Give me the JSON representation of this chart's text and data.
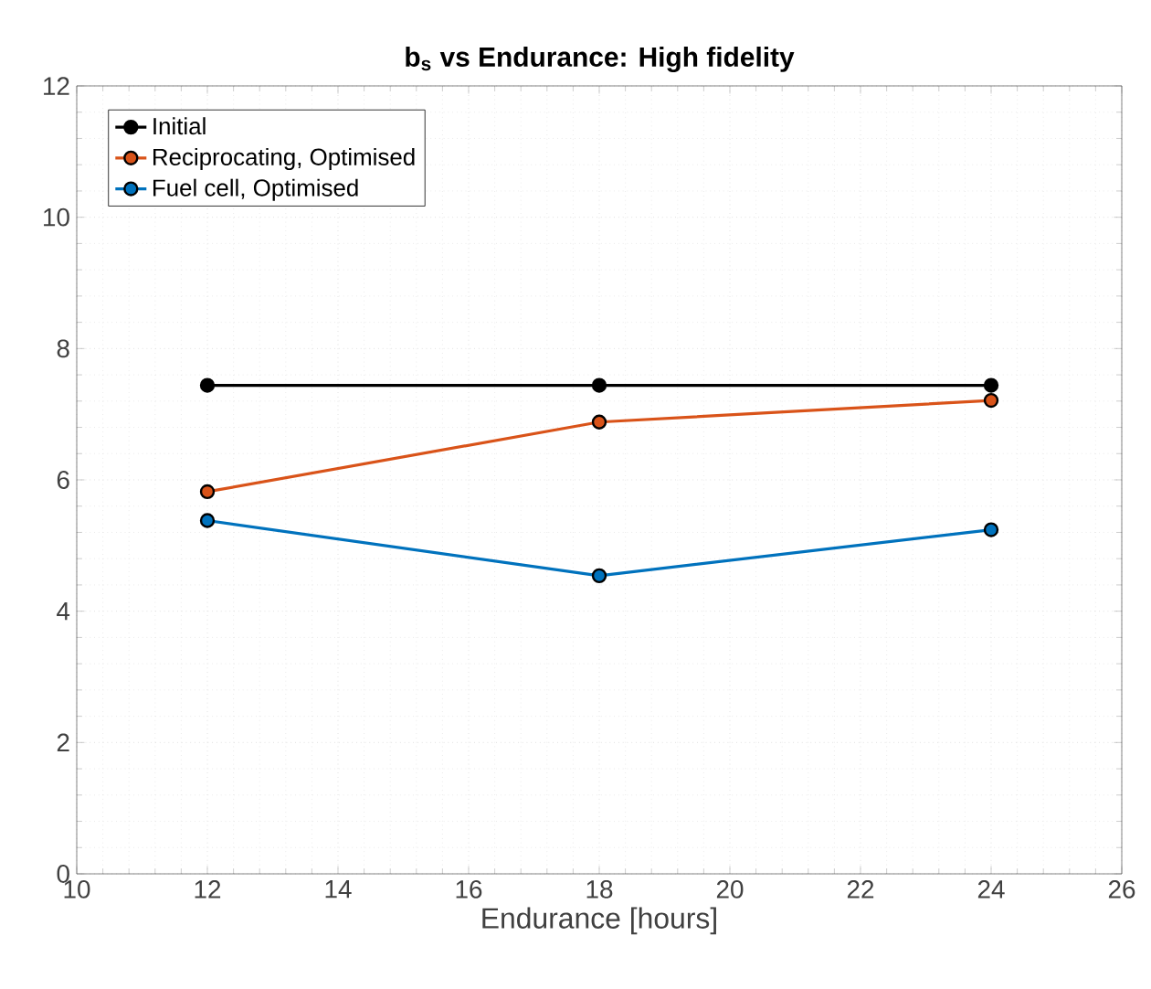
{
  "chart_data": {
    "type": "line",
    "title": "b$_{s}$ vs Endurance: High fidelity",
    "xlabel": "Endurance [hours]",
    "x": [
      12,
      18,
      24
    ],
    "series": [
      {
        "name": "Initial",
        "color": "#000000",
        "values": [
          7.44,
          7.44,
          7.44
        ]
      },
      {
        "name": "Reciprocating, Optimised",
        "color": "#d95319",
        "values": [
          5.82,
          6.88,
          7.21
        ]
      },
      {
        "name": "Fuel cell, Optimised",
        "color": "#0072bd",
        "values": [
          5.38,
          4.54,
          5.24
        ]
      }
    ],
    "xlim": [
      10,
      26
    ],
    "xticks": [
      10,
      12,
      14,
      16,
      18,
      20,
      22,
      24,
      26
    ],
    "ylim": [
      0,
      12
    ],
    "yticks": [
      0,
      2,
      4,
      6,
      8,
      10,
      12
    ],
    "grid": true,
    "legend": "top left",
    "marker": "circle",
    "line_style": "solid"
  }
}
